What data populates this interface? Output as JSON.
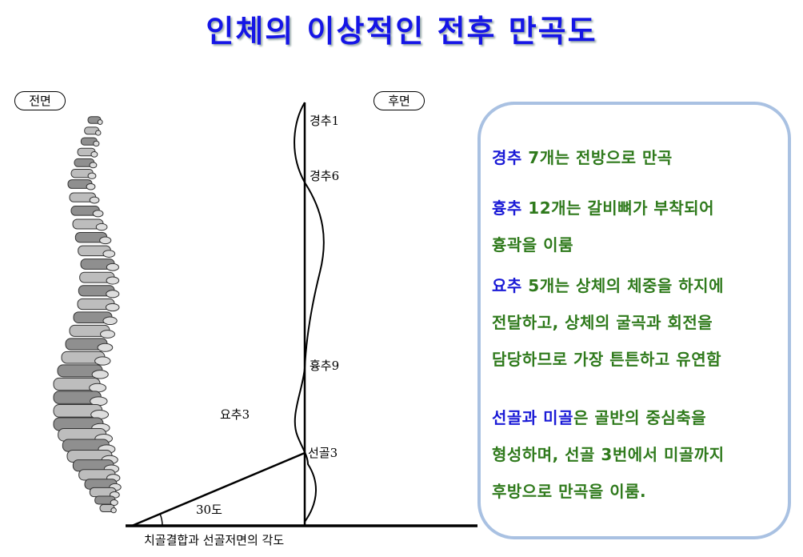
{
  "title": "인체의 이상적인 전후 만곡도",
  "front_label": "전면",
  "back_label": "후면",
  "curve_labels": {
    "cervical_1": "경추1",
    "cervical_6": "경추6",
    "thoracic_9": "흉추9",
    "lumbar_3": "요추3",
    "sacral_3": "선골3",
    "angle": "30도"
  },
  "caption": "치골결합과 선골저면의 각도",
  "info": {
    "paragraphs": [
      {
        "lines": [
          [
            {
              "text": "경추",
              "color": "#1a1ad6"
            },
            {
              "text": " 7개는 전방으로 만곡",
              "color": "#2f7a1c"
            }
          ]
        ]
      },
      {
        "lines": [
          [
            {
              "text": "흉추",
              "color": "#1a1ad6"
            },
            {
              "text": " 12개는 갈비뼈가 부착되어",
              "color": "#2f7a1c"
            }
          ],
          [
            {
              "text": "흉곽을 이룸",
              "color": "#2f7a1c"
            }
          ]
        ]
      },
      {
        "lines": [
          [
            {
              "text": "요추",
              "color": "#1a1ad6"
            },
            {
              "text": " 5개는 상체의 체중을 하지에",
              "color": "#2f7a1c"
            }
          ],
          [
            {
              "text": "전달하고, 상체의 굴곡과 회전을",
              "color": "#2f7a1c"
            }
          ],
          [
            {
              "text": "담당하므로 가장 튼튼하고 유연함",
              "color": "#2f7a1c"
            }
          ]
        ]
      },
      {
        "lines": [
          [
            {
              "text": "선골과 미골",
              "color": "#1a1ad6"
            },
            {
              "text": "은 골반의 중심축을",
              "color": "#2f7a1c"
            }
          ],
          [
            {
              "text": "형성하며, 선골 3번에서 미골까지",
              "color": "#2f7a1c"
            }
          ],
          [
            {
              "text": "후방으로 만곡을 이룸.",
              "color": "#2f7a1c"
            }
          ]
        ]
      }
    ]
  }
}
